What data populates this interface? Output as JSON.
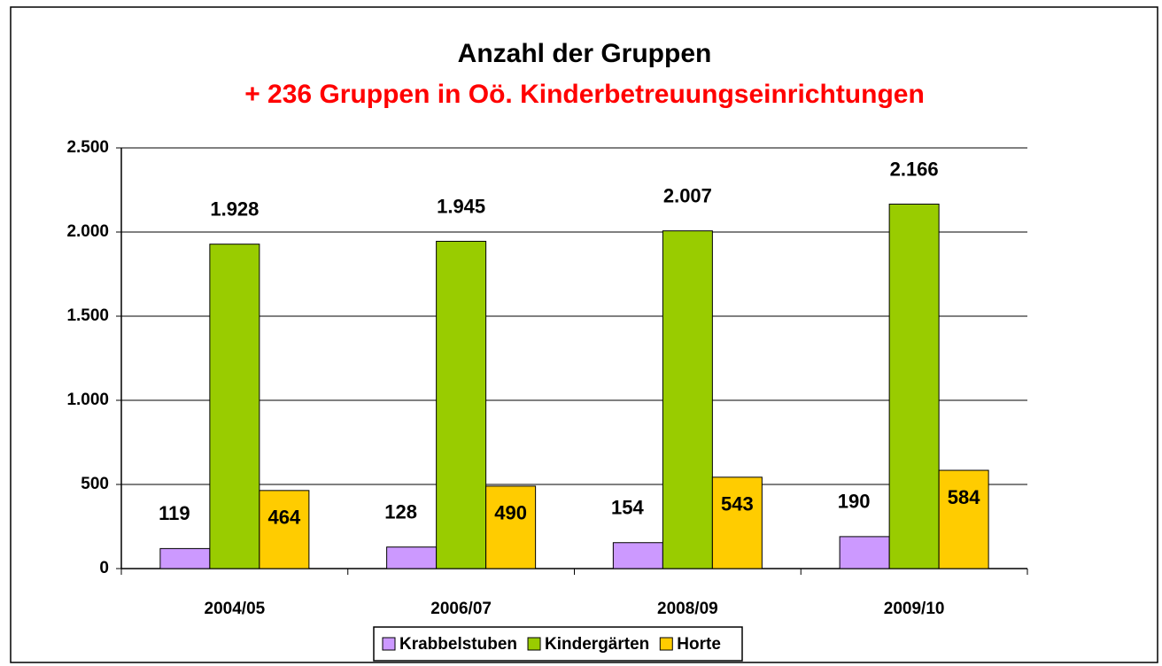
{
  "chart_data": {
    "type": "bar",
    "title": "Anzahl der Gruppen",
    "subtitle": "+ 236 Gruppen in Oö. Kinderbetreuungseinrichtungen",
    "categories": [
      "2004/05",
      "2006/07",
      "2008/09",
      "2009/10"
    ],
    "series": [
      {
        "name": "Krabbelstuben",
        "color": "#cc99ff",
        "values": [
          119,
          128,
          154,
          190
        ]
      },
      {
        "name": "Kindergärten",
        "color": "#99cc00",
        "values": [
          1928,
          1945,
          2007,
          2166
        ],
        "value_labels": [
          "1.928",
          "1.945",
          "2.007",
          "2.166"
        ]
      },
      {
        "name": "Horte",
        "color": "#ffcc00",
        "values": [
          464,
          490,
          543,
          584
        ]
      }
    ],
    "ylim": [
      0,
      2500
    ],
    "yticks": [
      0,
      500,
      {
        "value": 1000,
        "label": "1.000"
      },
      {
        "value": 1500,
        "label": "1.500"
      },
      {
        "value": 2000,
        "label": "2.000"
      },
      {
        "value": 2500,
        "label": "2.500"
      }
    ],
    "grid": true,
    "legend": "bottom"
  }
}
